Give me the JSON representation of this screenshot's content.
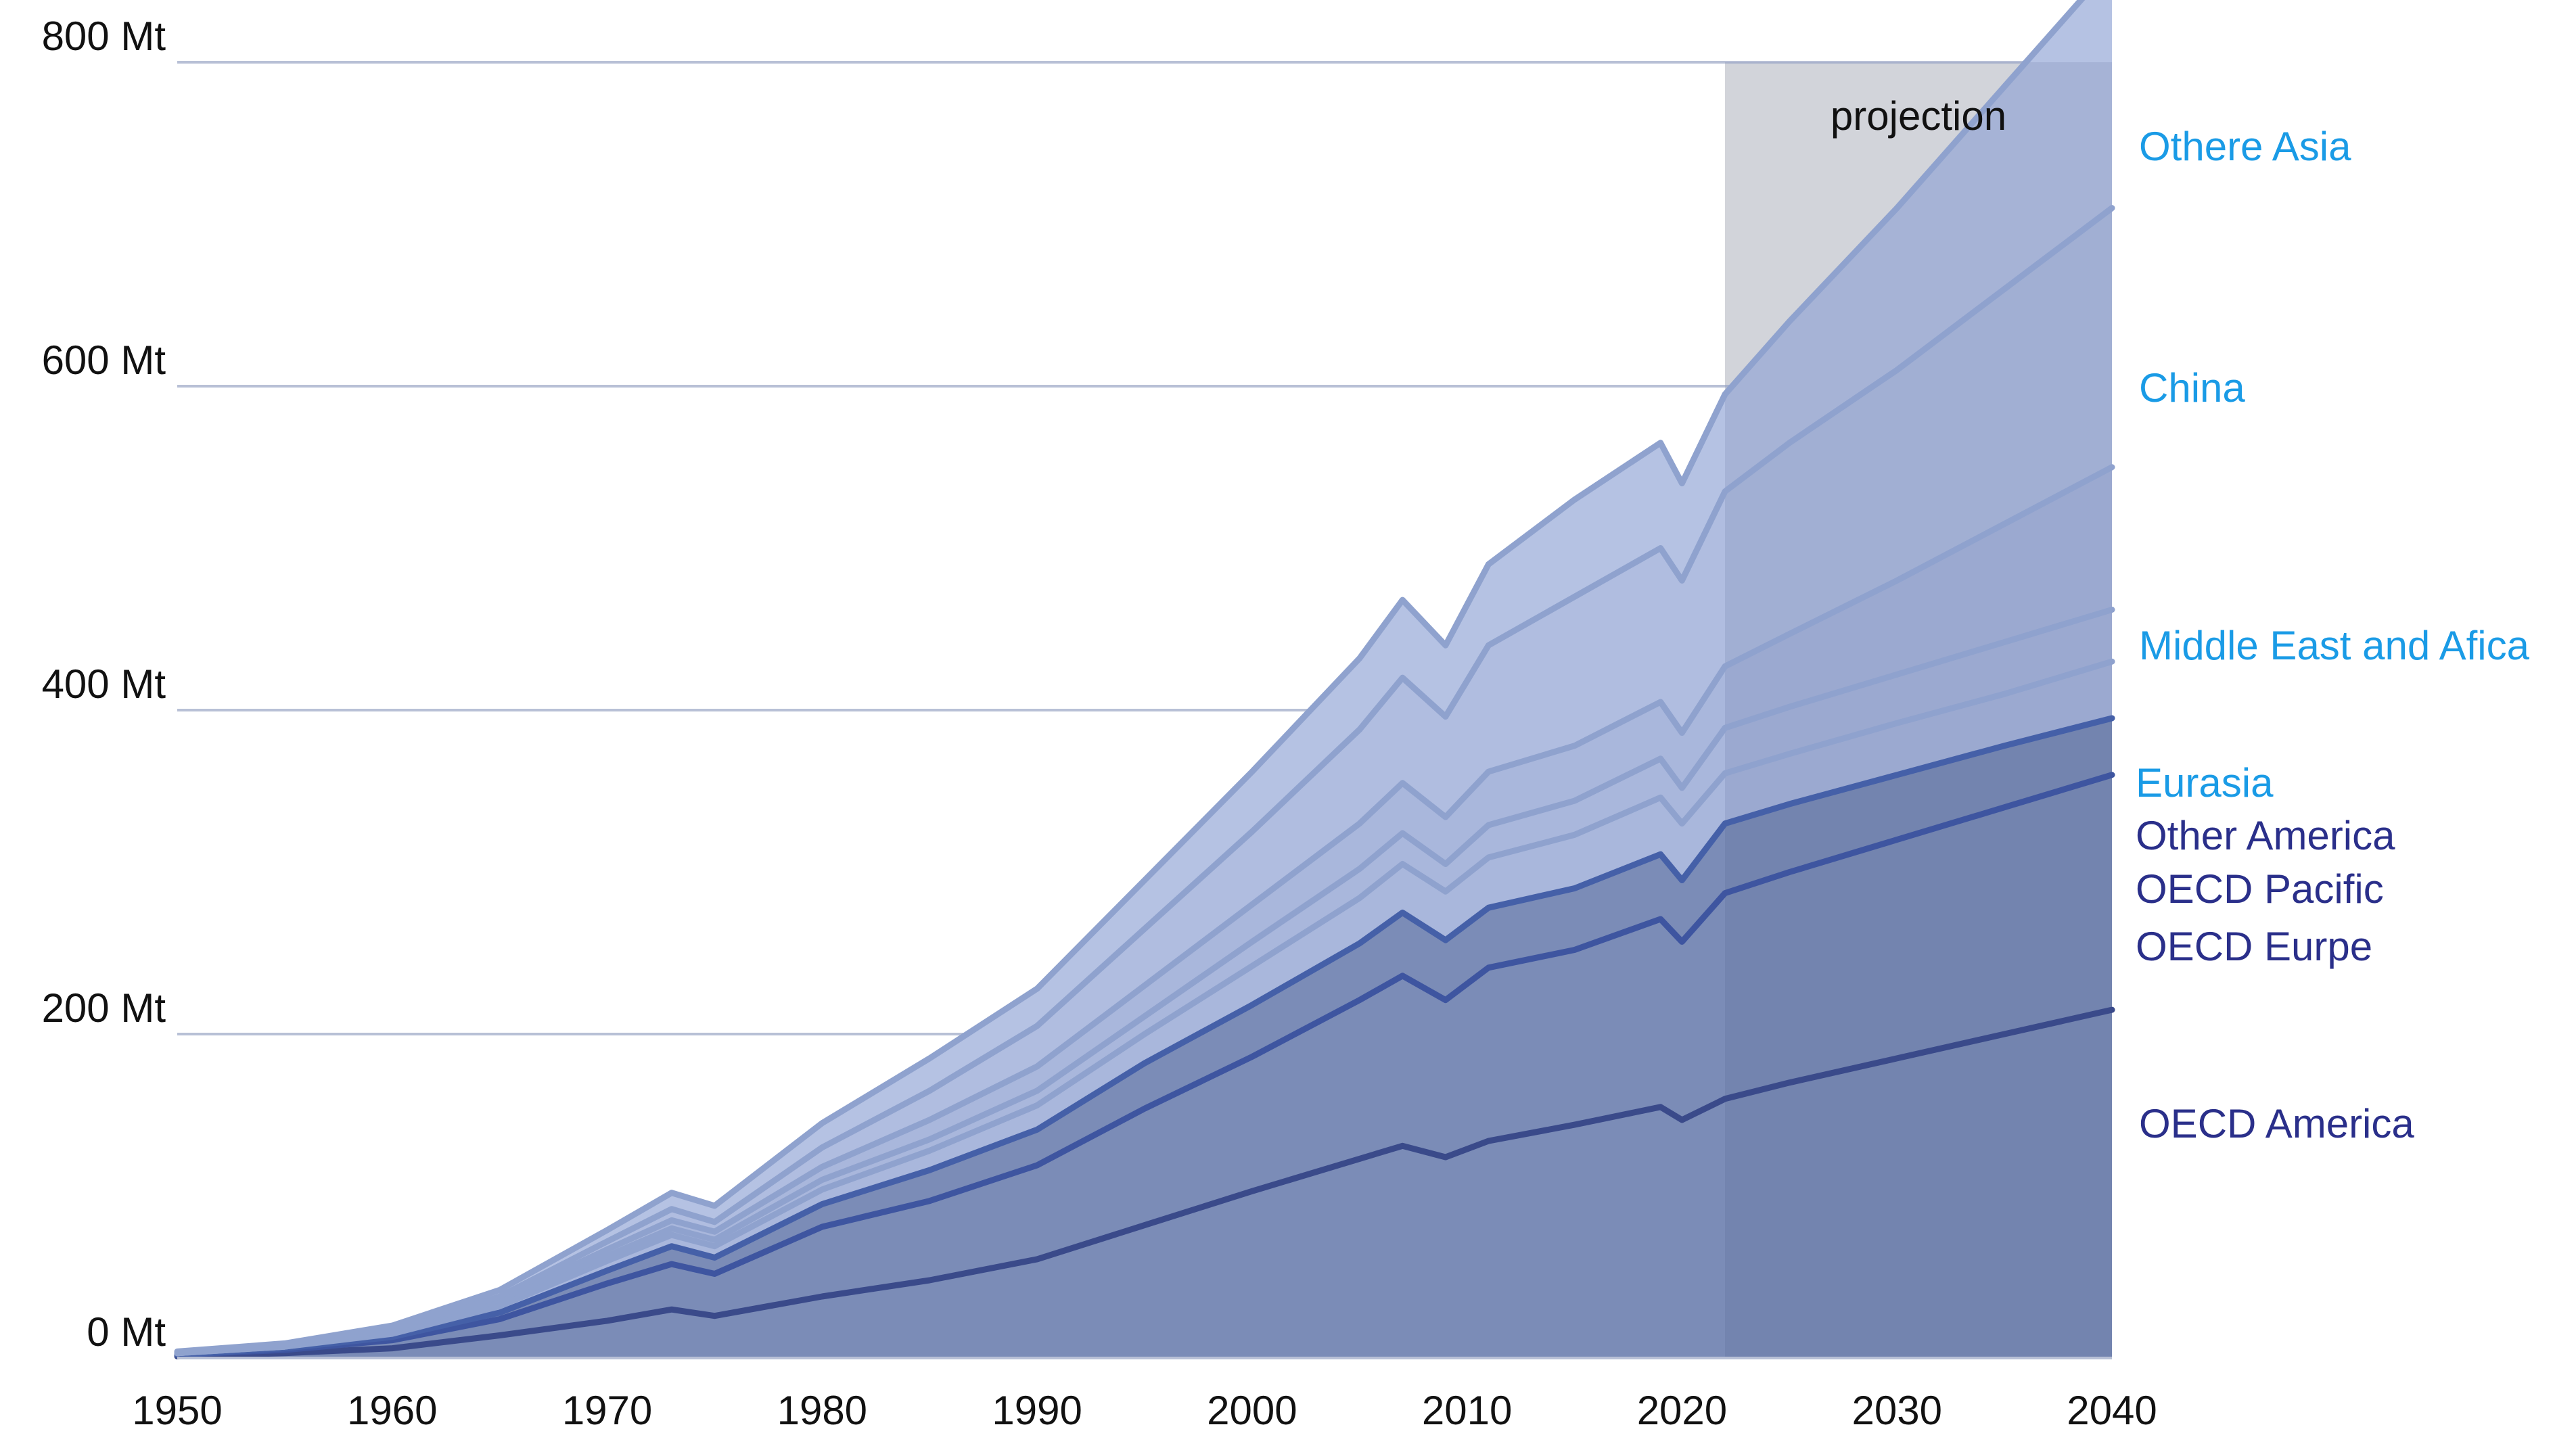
{
  "chart_data": {
    "type": "area",
    "title": "",
    "xlabel": "",
    "ylabel": "",
    "unit": "Mt",
    "xlim": [
      1950,
      2040
    ],
    "ylim": [
      0,
      800
    ],
    "grid": true,
    "y_ticks": [
      {
        "value": 0,
        "label": "0 Mt"
      },
      {
        "value": 200,
        "label": "200 Mt"
      },
      {
        "value": 400,
        "label": "400 Mt"
      },
      {
        "value": 600,
        "label": "600 Mt"
      },
      {
        "value": 800,
        "label": "800 Mt"
      }
    ],
    "x_ticks": [
      {
        "value": 1950,
        "label": "1950"
      },
      {
        "value": 1960,
        "label": "1960"
      },
      {
        "value": 1970,
        "label": "1970"
      },
      {
        "value": 1980,
        "label": "1980"
      },
      {
        "value": 1990,
        "label": "1990"
      },
      {
        "value": 2000,
        "label": "2000"
      },
      {
        "value": 2010,
        "label": "2010"
      },
      {
        "value": 2020,
        "label": "2020"
      },
      {
        "value": 2030,
        "label": "2030"
      },
      {
        "value": 2040,
        "label": "2040"
      }
    ],
    "projection": {
      "label": "projection",
      "start": 2022,
      "end": 2040
    },
    "x": [
      1950,
      1955,
      1960,
      1965,
      1970,
      1973,
      1975,
      1980,
      1985,
      1990,
      1995,
      2000,
      2005,
      2007,
      2009,
      2011,
      2015,
      2019,
      2020,
      2022,
      2025,
      2030,
      2035,
      2040
    ],
    "series": [
      {
        "name": "OECD America",
        "color": "#3a4a8a",
        "fill": "#7b8cb7",
        "values": [
          1,
          3,
          6,
          14,
          23,
          30,
          26,
          38,
          48,
          61,
          82,
          103,
          123,
          131,
          124,
          134,
          144,
          155,
          147,
          160,
          170,
          185,
          200,
          215
        ]
      },
      {
        "name": "OECD Eurpe",
        "color": "#3e55a0",
        "fill": "#7b8cb7",
        "values": [
          2,
          5,
          11,
          24,
          46,
          58,
          52,
          81,
          97,
          119,
          154,
          186,
          221,
          236,
          221,
          241,
          252,
          271,
          257,
          287,
          300,
          320,
          340,
          360
        ]
      },
      {
        "name": "OECD Pacific",
        "color": "#4560a8",
        "fill": "#7b8cb7",
        "values": [
          2,
          6,
          13,
          28,
          54,
          69,
          62,
          95,
          116,
          141,
          182,
          218,
          256,
          275,
          258,
          278,
          290,
          311,
          295,
          330,
          342,
          360,
          378,
          395
        ]
      },
      {
        "name": "Other America",
        "color": "#8fa2ce",
        "fill": "#a9b7dc",
        "values": [
          3,
          7,
          15,
          32,
          60,
          76,
          69,
          104,
          128,
          156,
          200,
          242,
          284,
          305,
          288,
          309,
          323,
          346,
          330,
          361,
          373,
          392,
          410,
          430
        ]
      },
      {
        "name": "Eurasia",
        "color": "#8fa2ce",
        "fill": "#a9b7dc",
        "values": [
          3,
          7,
          16,
          34,
          63,
          80,
          73,
          110,
          135,
          165,
          211,
          257,
          302,
          324,
          305,
          329,
          344,
          370,
          352,
          389,
          402,
          422,
          442,
          462
        ]
      },
      {
        "name": "Middle East and Afica",
        "color": "#8fa2ce",
        "fill": "#a9b7dc",
        "values": [
          3,
          8,
          17,
          36,
          67,
          85,
          78,
          118,
          147,
          180,
          230,
          280,
          330,
          355,
          334,
          362,
          378,
          405,
          386,
          427,
          447,
          480,
          515,
          550
        ]
      },
      {
        "name": "China",
        "color": "#8fa2ce",
        "fill": "#b0bde0",
        "values": [
          3,
          8,
          18,
          38,
          72,
          92,
          84,
          130,
          165,
          205,
          265,
          325,
          388,
          420,
          396,
          440,
          470,
          500,
          480,
          535,
          565,
          610,
          660,
          710
        ]
      },
      {
        "name": "Othere Asia",
        "color": "#8fa2ce",
        "fill": "#b5c2e3",
        "values": [
          4,
          9,
          20,
          42,
          79,
          102,
          94,
          145,
          185,
          228,
          295,
          362,
          432,
          468,
          440,
          490,
          530,
          565,
          540,
          595,
          640,
          710,
          785,
          860
        ]
      }
    ]
  }
}
